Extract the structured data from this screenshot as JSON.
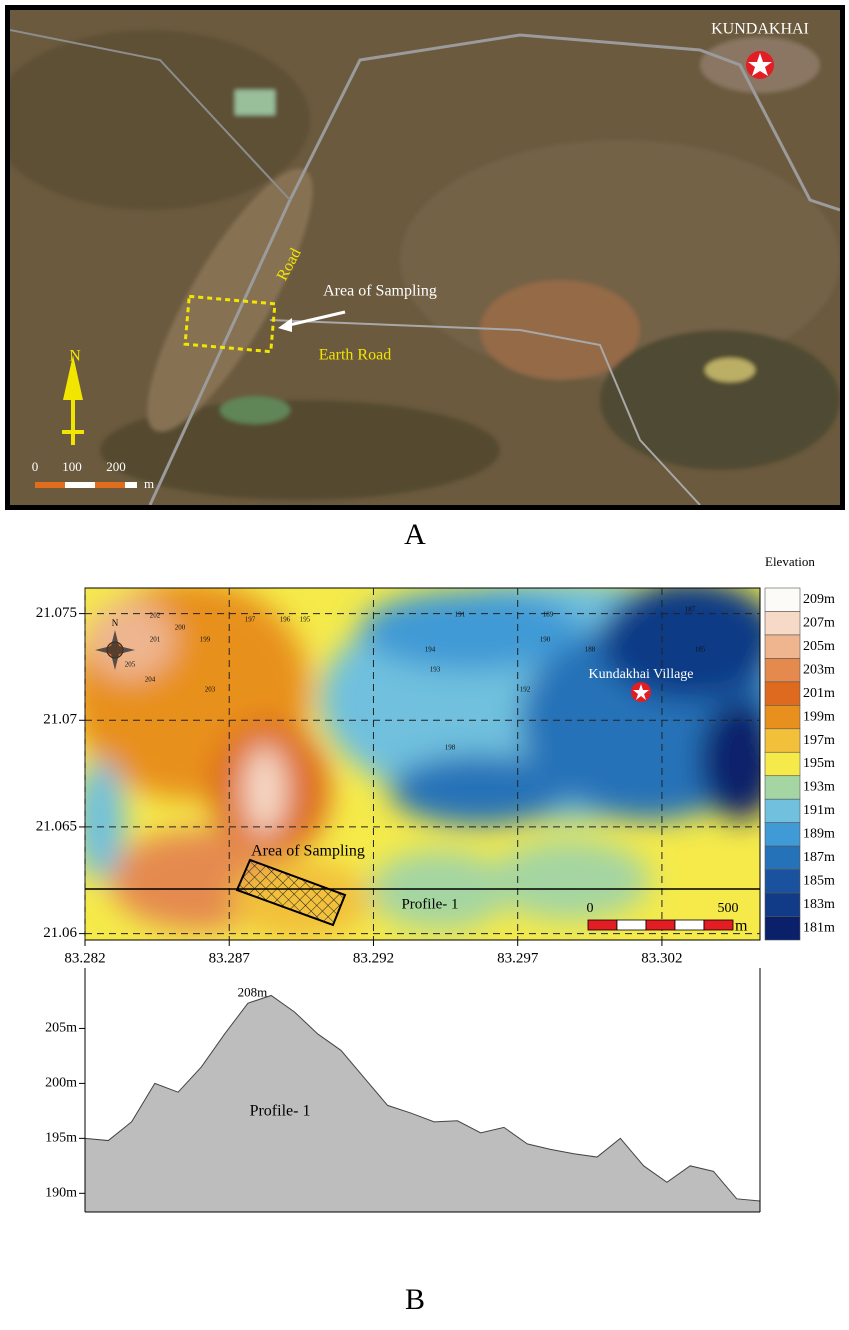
{
  "panel_a": {
    "label": "A",
    "place": "KUNDAKHAI",
    "road": "Road",
    "area": "Area of Sampling",
    "earth_road": "Earth Road",
    "north": "N",
    "scale": [
      "0",
      "100",
      "200"
    ],
    "scale_unit": "m"
  },
  "panel_b": {
    "label": "B",
    "map": {
      "xlim": [
        83.282,
        83.3054
      ],
      "ylim": [
        21.0597,
        21.0762
      ],
      "xticks": [
        83.282,
        83.287,
        83.292,
        83.297,
        83.302
      ],
      "yticks": [
        21.06,
        21.065,
        21.07,
        21.075
      ],
      "north": "N",
      "village": "Kundakhai Village",
      "area": "Area of Sampling",
      "profile": "Profile- 1",
      "scale": [
        "0",
        "500"
      ],
      "scale_unit": "m",
      "contour_labels": [
        "202",
        "201",
        "200",
        "199",
        "205",
        "204",
        "197",
        "196",
        "195",
        "194",
        "193",
        "191",
        "189",
        "187",
        "185",
        "203",
        "198",
        "192",
        "190",
        "188"
      ]
    },
    "legend": {
      "title": "Elevation",
      "labels": [
        "209m",
        "207m",
        "205m",
        "203m",
        "201m",
        "199m",
        "197m",
        "195m",
        "193m",
        "191m",
        "189m",
        "187m",
        "185m",
        "183m",
        "181m"
      ],
      "colors": [
        "#fdfbf8",
        "#f6d9c6",
        "#eeb58f",
        "#e58a4f",
        "#dd6a1e",
        "#e8901e",
        "#f2c03a",
        "#f5ea4a",
        "#a4d5a2",
        "#70c0de",
        "#3f9ad5",
        "#2572b8",
        "#1a529f",
        "#113b86",
        "#0b206a"
      ]
    },
    "profile": {
      "label": "Profile- 1",
      "peak_label": "208m",
      "color": "#bdbdbd",
      "ylim": [
        188.3,
        210.5
      ],
      "yticks": [
        {
          "value": 190,
          "label": "190m"
        },
        {
          "value": 195,
          "label": "195m"
        },
        {
          "value": 200,
          "label": "200m"
        },
        {
          "value": 205,
          "label": "205m"
        }
      ],
      "values": [
        195,
        194.8,
        196.5,
        200,
        199.2,
        201.5,
        204.5,
        207.3,
        208,
        206.5,
        204.5,
        203,
        200.5,
        198,
        197.3,
        196.5,
        196.6,
        195.5,
        196,
        194.5,
        194,
        193.6,
        193.3,
        195,
        192.5,
        191,
        192.5,
        192,
        189.5,
        189.3
      ]
    }
  }
}
